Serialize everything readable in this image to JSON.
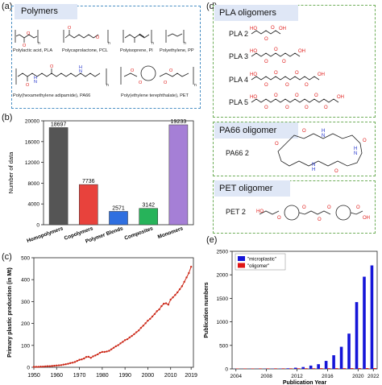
{
  "panel_labels": {
    "a": "(a)",
    "b": "(b)",
    "c": "(c)",
    "d": "(d)",
    "e": "(e)"
  },
  "panel_a": {
    "title": "Polymers",
    "molecules": [
      "Polylactic acid, PLA",
      "Polycaprolactone, PCL",
      "Polyisoprene, PI",
      "Polyethylene, PP",
      "Poly(hexamethylene adipamide), PA66",
      "Poly(ethylene terephthalate), PET"
    ]
  },
  "panel_d": {
    "pla_title": "PLA oligomers",
    "pla_items": [
      "PLA 2",
      "PLA 3",
      "PLA 4",
      "PLA 5"
    ],
    "pa66_title": "PA66 oligomer",
    "pa66_items": [
      "PA66 2"
    ],
    "pet_title": "PET oligomer",
    "pet_items": [
      "PET 2"
    ],
    "colors": {
      "oxygen": "#e0201e",
      "nitrogen": "#2233cc",
      "bond": "#222222",
      "pill_bg": "#dfe7f6"
    }
  },
  "chart_data": [
    {
      "id": "b",
      "type": "bar",
      "ylabel": "Number of data",
      "ylim": [
        0,
        20000
      ],
      "yticks": [
        0,
        4000,
        8000,
        12000,
        16000,
        20000
      ],
      "categories": [
        "Homopolymers",
        "Copolymers",
        "Polymer Blends",
        "Composites",
        "Monomers"
      ],
      "values": [
        18697,
        7736,
        2571,
        3142,
        19233
      ],
      "value_labels": [
        "18697",
        "7736",
        "2571",
        "3142",
        "19233"
      ],
      "colors": [
        "#555555",
        "#e8423c",
        "#2f6fe0",
        "#27b35a",
        "#a57fd6"
      ]
    },
    {
      "id": "c",
      "type": "line",
      "xlabel": "",
      "ylabel": "Primary plastic production (in Mt)",
      "xlim": [
        1950,
        2020
      ],
      "ylim": [
        0,
        500
      ],
      "xticks": [
        1950,
        1960,
        1970,
        1980,
        1990,
        2000,
        2010,
        2019
      ],
      "yticks": [
        0,
        100,
        200,
        300,
        400,
        500
      ],
      "color": "#cc2a1a",
      "x": [
        1950,
        1951,
        1952,
        1953,
        1954,
        1955,
        1956,
        1957,
        1958,
        1959,
        1960,
        1961,
        1962,
        1963,
        1964,
        1965,
        1966,
        1967,
        1968,
        1969,
        1970,
        1971,
        1972,
        1973,
        1974,
        1975,
        1976,
        1977,
        1978,
        1979,
        1980,
        1981,
        1982,
        1983,
        1984,
        1985,
        1986,
        1987,
        1988,
        1989,
        1990,
        1991,
        1992,
        1993,
        1994,
        1995,
        1996,
        1997,
        1998,
        1999,
        2000,
        2001,
        2002,
        2003,
        2004,
        2005,
        2006,
        2007,
        2008,
        2009,
        2010,
        2011,
        2012,
        2013,
        2014,
        2015,
        2016,
        2017,
        2018,
        2019
      ],
      "y": [
        2,
        2,
        2,
        3,
        3,
        4,
        5,
        5,
        6,
        7,
        8,
        9,
        10,
        12,
        14,
        16,
        19,
        21,
        24,
        29,
        34,
        36,
        40,
        47,
        48,
        43,
        50,
        54,
        59,
        66,
        70,
        70,
        72,
        75,
        82,
        89,
        96,
        101,
        109,
        116,
        124,
        128,
        136,
        143,
        151,
        160,
        168,
        180,
        190,
        201,
        213,
        221,
        232,
        243,
        256,
        264,
        279,
        290,
        292,
        286,
        309,
        319,
        330,
        342,
        356,
        370,
        390,
        410,
        430,
        459
      ]
    },
    {
      "id": "e",
      "type": "bar",
      "xlabel": "Publication Year",
      "ylabel": "Publication numbers",
      "ylim": [
        0,
        2500
      ],
      "yticks": [
        0,
        500,
        1000,
        1500,
        2000,
        2500
      ],
      "xlim": [
        2004,
        2022
      ],
      "xticks": [
        2004,
        2008,
        2012,
        2016,
        2020,
        2022
      ],
      "x_tick_labels": [
        "2004",
        "2008",
        "2012",
        "2016",
        "2020",
        "2022"
      ],
      "legend": "top-left",
      "series": [
        {
          "name": "\"microplastic\"",
          "color": "#1515d8",
          "x": [
            2004,
            2005,
            2006,
            2007,
            2008,
            2009,
            2010,
            2011,
            2012,
            2013,
            2014,
            2015,
            2016,
            2017,
            2018,
            2019,
            2020,
            2021,
            2022
          ],
          "values": [
            2,
            2,
            3,
            3,
            4,
            5,
            6,
            12,
            25,
            40,
            70,
            100,
            170,
            290,
            470,
            750,
            1420,
            1960,
            2200
          ]
        },
        {
          "name": "\"oligomer\"",
          "color": "#e01515",
          "x": [
            2004,
            2005,
            2006,
            2007,
            2008,
            2009,
            2010,
            2011,
            2012,
            2013,
            2014,
            2015,
            2016,
            2017,
            2018,
            2019,
            2020,
            2021,
            2022
          ],
          "values": [
            8,
            9,
            9,
            10,
            10,
            11,
            11,
            12,
            12,
            13,
            13,
            14,
            14,
            15,
            15,
            16,
            16,
            17,
            17
          ]
        }
      ]
    }
  ]
}
